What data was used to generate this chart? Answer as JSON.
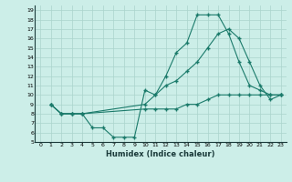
{
  "xlabel": "Humidex (Indice chaleur)",
  "background_color": "#cceee8",
  "grid_color": "#aad4cc",
  "line_color": "#1a7a6a",
  "xlim": [
    -0.5,
    23.5
  ],
  "ylim": [
    5,
    19.5
  ],
  "xticks": [
    0,
    1,
    2,
    3,
    4,
    5,
    6,
    7,
    8,
    9,
    10,
    11,
    12,
    13,
    14,
    15,
    16,
    17,
    18,
    19,
    20,
    21,
    22,
    23
  ],
  "yticks": [
    5,
    6,
    7,
    8,
    9,
    10,
    11,
    12,
    13,
    14,
    15,
    16,
    17,
    18,
    19
  ],
  "series": [
    {
      "x": [
        1,
        2,
        3,
        4,
        5,
        6,
        7,
        8,
        9,
        10,
        11,
        12,
        13,
        14,
        15,
        16,
        17,
        18,
        19,
        20,
        21,
        22,
        23
      ],
      "y": [
        9,
        8,
        8,
        8,
        6.5,
        6.5,
        5.5,
        5.5,
        5.5,
        10.5,
        10,
        12,
        14.5,
        15.5,
        18.5,
        18.5,
        18.5,
        16.5,
        13.5,
        11,
        10.5,
        10,
        10
      ]
    },
    {
      "x": [
        1,
        2,
        3,
        4,
        10,
        11,
        12,
        13,
        14,
        15,
        16,
        17,
        18,
        19,
        20,
        21,
        22,
        23
      ],
      "y": [
        9,
        8,
        8,
        8,
        8.5,
        8.5,
        8.5,
        8.5,
        9,
        9,
        9.5,
        10,
        10,
        10,
        10,
        10,
        10,
        10
      ]
    },
    {
      "x": [
        1,
        2,
        3,
        4,
        10,
        11,
        12,
        13,
        14,
        15,
        16,
        17,
        18,
        19,
        20,
        21,
        22,
        23
      ],
      "y": [
        9,
        8,
        8,
        8,
        9,
        10,
        11,
        11.5,
        12.5,
        13.5,
        15,
        16.5,
        17,
        16,
        13.5,
        11,
        9.5,
        10
      ]
    }
  ]
}
